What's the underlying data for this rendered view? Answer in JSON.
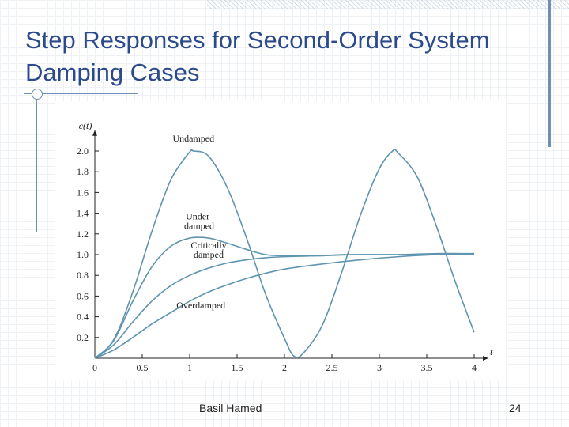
{
  "slide": {
    "title": "Step Responses for Second-Order System Damping Cases",
    "footer_author": "Basil Hamed",
    "page_number": "24"
  },
  "chart_data": {
    "type": "line",
    "ylabel": "c(t)",
    "xlabel": "t",
    "xlim": [
      0,
      4.1
    ],
    "ylim": [
      0,
      2.2
    ],
    "x_ticks": [
      0,
      0.5,
      1,
      1.5,
      2,
      2.5,
      3,
      3.5,
      4
    ],
    "x_tick_labels": [
      "0",
      "0.5",
      "1",
      "1.5",
      "2",
      "2.5",
      "3",
      "3.5",
      "4"
    ],
    "y_ticks": [
      0.2,
      0.4,
      0.6,
      0.8,
      1.0,
      1.2,
      1.4,
      1.6,
      1.8,
      2.0
    ],
    "y_tick_labels": [
      "0.2",
      "0.4",
      "0.6",
      "0.8",
      "1.0",
      "1.2",
      "1.4",
      "1.6",
      "1.8",
      "2.0"
    ],
    "grid": false,
    "colors": {
      "curve": "#5e94b0",
      "axis": "#222222",
      "label": "#222222"
    },
    "series": [
      {
        "name": "Undamped",
        "x": [
          0,
          0.2,
          0.4,
          0.6,
          0.8,
          1.0,
          1.04,
          1.2,
          1.4,
          1.6,
          1.8,
          2.0,
          2.1,
          2.2,
          2.4,
          2.6,
          2.8,
          3.0,
          3.14,
          3.2,
          3.4,
          3.6,
          3.8,
          4.0
        ],
        "y": [
          0,
          0.18,
          0.64,
          1.22,
          1.72,
          1.99,
          2.0,
          1.95,
          1.64,
          1.16,
          0.62,
          0.19,
          0.02,
          0.05,
          0.32,
          0.82,
          1.38,
          1.83,
          2.0,
          1.98,
          1.75,
          1.28,
          0.74,
          0.25
        ]
      },
      {
        "name": "Under-damped",
        "x": [
          0,
          0.2,
          0.4,
          0.6,
          0.8,
          1.0,
          1.2,
          1.4,
          1.6,
          1.8,
          2.0,
          2.2,
          2.4,
          2.6,
          2.8,
          3.0,
          3.5,
          4.0
        ],
        "y": [
          0,
          0.17,
          0.55,
          0.88,
          1.08,
          1.16,
          1.16,
          1.11,
          1.05,
          1.0,
          0.99,
          0.99,
          0.99,
          1.0,
          1.0,
          1.0,
          1.0,
          1.0
        ]
      },
      {
        "name": "Critically damped",
        "x": [
          0,
          0.2,
          0.4,
          0.6,
          0.8,
          1.0,
          1.2,
          1.4,
          1.6,
          1.8,
          2.0,
          2.4,
          2.8,
          3.2,
          3.6,
          4.0
        ],
        "y": [
          0,
          0.13,
          0.35,
          0.55,
          0.7,
          0.8,
          0.87,
          0.92,
          0.95,
          0.97,
          0.98,
          0.99,
          1.0,
          1.0,
          1.01,
          1.01
        ]
      },
      {
        "name": "Overdamped",
        "x": [
          0,
          0.2,
          0.4,
          0.6,
          0.8,
          1.0,
          1.2,
          1.4,
          1.6,
          1.8,
          2.0,
          2.4,
          2.8,
          3.2,
          3.6,
          4.0
        ],
        "y": [
          0,
          0.08,
          0.2,
          0.33,
          0.44,
          0.55,
          0.64,
          0.71,
          0.77,
          0.82,
          0.86,
          0.91,
          0.95,
          0.98,
          1.0,
          1.01
        ]
      }
    ],
    "annotations": [
      {
        "series": "Undamped",
        "lines": [
          "Undamped"
        ],
        "x": 1.04,
        "y": 2.09,
        "align": "middle"
      },
      {
        "series": "Under-damped",
        "lines": [
          "Under-",
          "damped"
        ],
        "x": 1.1,
        "y": 1.34,
        "align": "middle"
      },
      {
        "series": "Critically damped",
        "lines": [
          "Critically",
          "damped"
        ],
        "x": 1.2,
        "y": 1.06,
        "align": "middle"
      },
      {
        "series": "Overdamped",
        "lines": [
          "Overdamped"
        ],
        "x": 0.86,
        "y": 0.48,
        "align": "start"
      }
    ]
  }
}
